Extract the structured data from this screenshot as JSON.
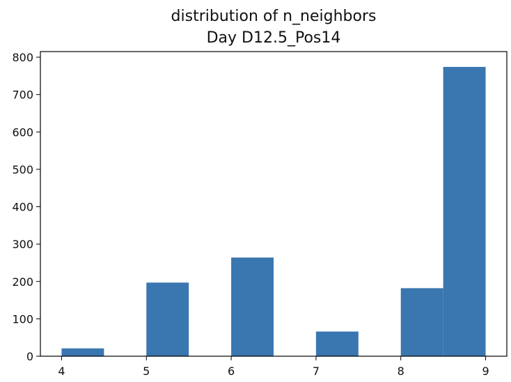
{
  "chart_data": {
    "type": "bar",
    "title": "distribution of n_neighbors",
    "subtitle": "Day D12.5_Pos14",
    "xlabel": "",
    "ylabel": "",
    "xlim": [
      3.75,
      9.25
    ],
    "ylim": [
      0,
      815
    ],
    "x_ticks": [
      4,
      5,
      6,
      7,
      8,
      9
    ],
    "y_ticks": [
      0,
      100,
      200,
      300,
      400,
      500,
      600,
      700,
      800
    ],
    "grid": false,
    "bar_color": "#3a76af",
    "bars": [
      {
        "x_start": 4.0,
        "x_end": 4.5,
        "value": 21
      },
      {
        "x_start": 5.0,
        "x_end": 5.5,
        "value": 197
      },
      {
        "x_start": 6.0,
        "x_end": 6.5,
        "value": 264
      },
      {
        "x_start": 7.0,
        "x_end": 7.5,
        "value": 66
      },
      {
        "x_start": 8.0,
        "x_end": 8.5,
        "value": 182
      },
      {
        "x_start": 8.5,
        "x_end": 9.0,
        "value": 774
      }
    ]
  }
}
